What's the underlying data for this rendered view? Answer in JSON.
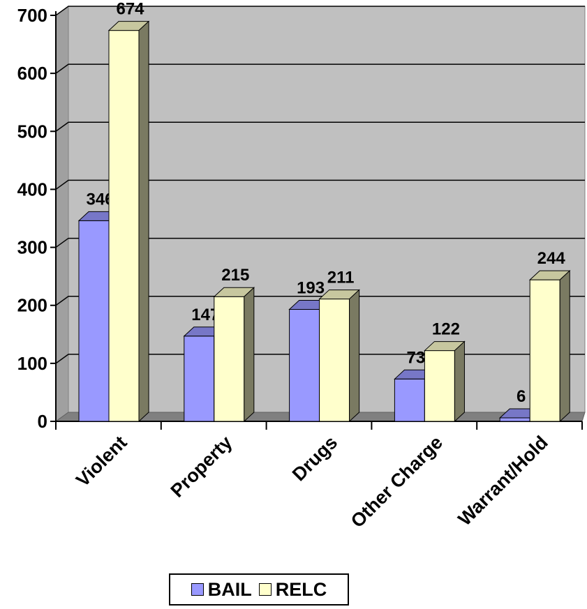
{
  "chart_data": {
    "type": "bar",
    "categories": [
      "Violent",
      "Property",
      "Drugs",
      "Other Charge",
      "Warrant/Hold"
    ],
    "series": [
      {
        "name": "BAIL",
        "values": [
          346,
          147,
          193,
          73,
          6
        ],
        "color": "#9999ff"
      },
      {
        "name": "RELC",
        "values": [
          674,
          215,
          211,
          122,
          244
        ],
        "color": "#ffffcc"
      }
    ],
    "ylim": [
      0,
      700
    ],
    "yticks": [
      "0",
      "100",
      "200",
      "300",
      "400",
      "500",
      "600",
      "700"
    ],
    "grid": true,
    "legend_position": "bottom",
    "wall_color": "#c0c0c0",
    "floor_color": "#808080"
  }
}
